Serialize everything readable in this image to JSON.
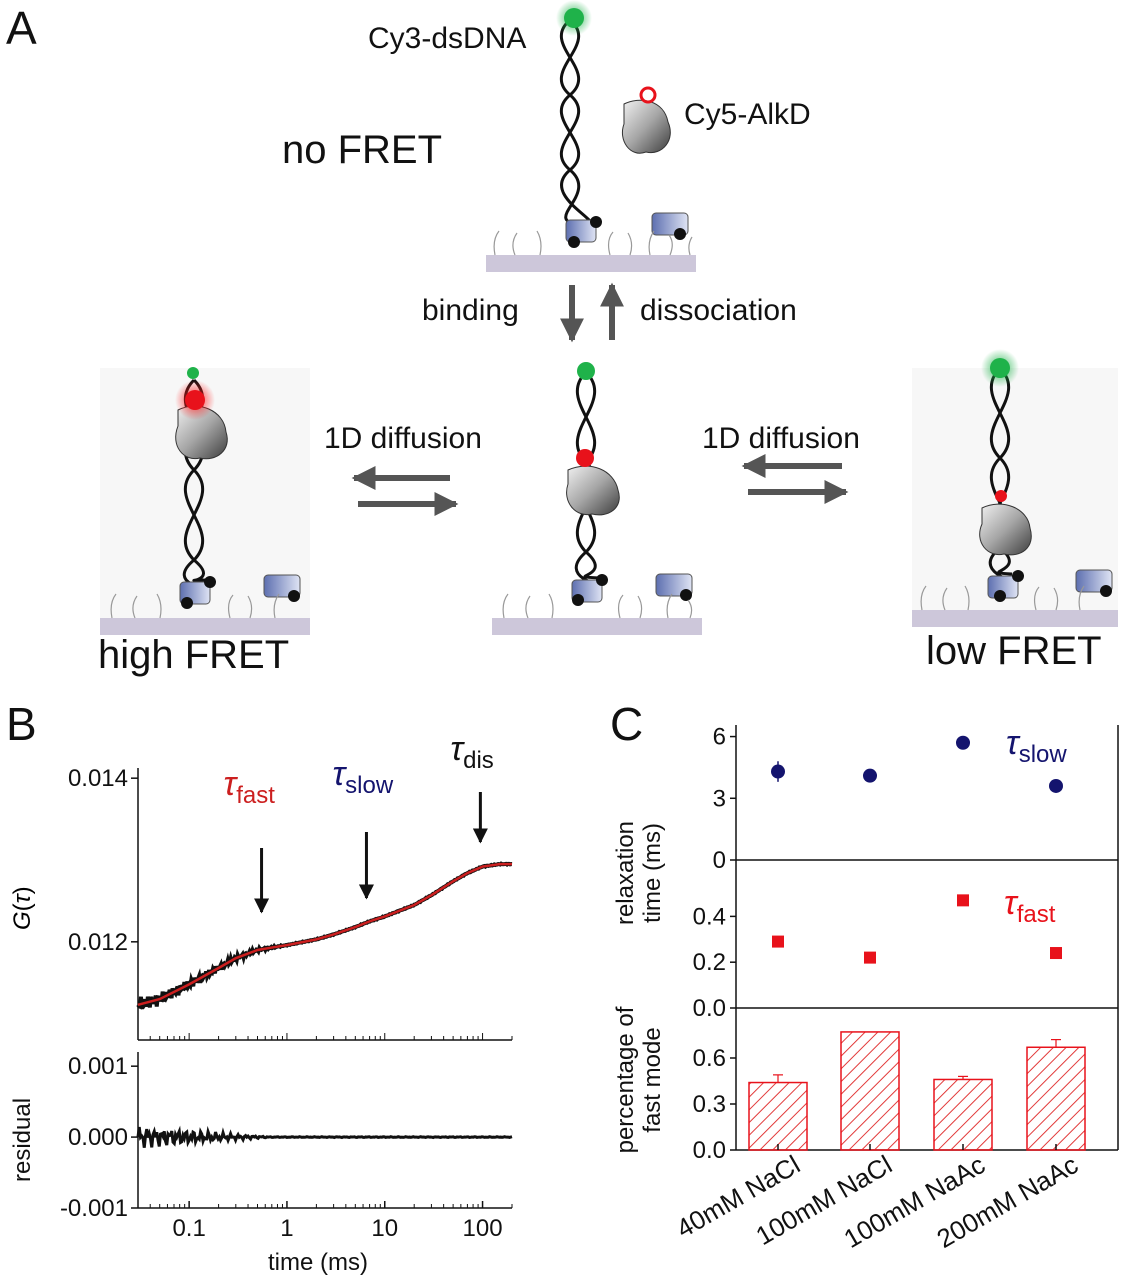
{
  "panels": {
    "a": "A",
    "b": "B",
    "c": "C"
  },
  "panel_a": {
    "cy3_label": "Cy3-dsDNA",
    "cy5_label": "Cy5-AlkD",
    "no_fret": "no FRET",
    "binding": "binding",
    "dissociation": "dissociation",
    "diffusion_left": "1D diffusion",
    "diffusion_right": "1D diffusion",
    "high_fret": "high FRET",
    "low_fret": "low FRET"
  },
  "colors": {
    "fit_red": "#cc1f1f",
    "data_black": "#111111",
    "slow_navy": "#14146e",
    "fast_red": "#e8121b",
    "cy3_green": "#1fb24a",
    "surface": "#cdc7da",
    "arrow_gray": "#555555"
  },
  "chart_data": [
    {
      "type": "line",
      "panel": "B-top",
      "xscale": "log",
      "xlim": [
        0.03,
        200
      ],
      "ylim": [
        0.0108,
        0.0141
      ],
      "xticks": [
        "0.1",
        "1",
        "10",
        "100"
      ],
      "yticks": [
        "0.012",
        "0.014"
      ],
      "ylabel_main": "G",
      "ylabel_sym": "τ",
      "series": [
        {
          "x": [
            0.03,
            0.05,
            0.1,
            0.2,
            0.3,
            0.5,
            0.7,
            1,
            2,
            3,
            5,
            7,
            10,
            20,
            30,
            50,
            70,
            100,
            150,
            200
          ],
          "y": [
            0.01123,
            0.0113,
            0.01148,
            0.01168,
            0.0118,
            0.0119,
            0.01193,
            0.01196,
            0.01203,
            0.01209,
            0.01218,
            0.01225,
            0.01231,
            0.01245,
            0.01257,
            0.01274,
            0.01284,
            0.01292,
            0.01295,
            0.01295
          ]
        }
      ],
      "annotations": [
        {
          "sym": "τ",
          "sub": "fast",
          "x": 0.55,
          "color": "#cc1f1f"
        },
        {
          "sym": "τ",
          "sub": "slow",
          "x": 6.5,
          "color": "#14146e"
        },
        {
          "sym": "τ",
          "sub": "dis",
          "x": 95,
          "color": "#111111"
        }
      ]
    },
    {
      "type": "line",
      "panel": "B-bottom",
      "xscale": "log",
      "xlim": [
        0.03,
        200
      ],
      "ylim": [
        -0.001,
        0.0012
      ],
      "xticks": [
        "0.1",
        "1",
        "10",
        "100"
      ],
      "yticks": [
        "0.001",
        "0.000",
        "-0.001"
      ],
      "xlabel": "time (ms)",
      "ylabel": "residual",
      "series": [
        {
          "x": [
            0.03,
            200
          ],
          "y": [
            0.0,
            0.0
          ]
        }
      ]
    },
    {
      "type": "scatter",
      "panel": "C-top",
      "categories": [
        "40mM NaCl",
        "100mM NaCl",
        "100mM NaAc",
        "200mM NaAc"
      ],
      "ylim": [
        0,
        7
      ],
      "yticks": [
        "0",
        "3",
        "6"
      ],
      "series": [
        {
          "name": "τslow",
          "values": [
            4.3,
            4.1,
            5.7,
            3.6
          ],
          "errors": [
            0.5,
            0.0,
            0.0,
            0.0
          ]
        }
      ],
      "series_label": {
        "sym": "τ",
        "sub": "slow"
      }
    },
    {
      "type": "scatter",
      "panel": "C-middle",
      "categories": [
        "40mM NaCl",
        "100mM NaCl",
        "100mM NaAc",
        "200mM NaAc"
      ],
      "ylim": [
        0,
        0.62
      ],
      "yticks": [
        "0.0",
        "0.2",
        "0.4"
      ],
      "ylabel": "relaxation time (ms)",
      "ylabel_lines": [
        "relaxation",
        "time (ms)"
      ],
      "series": [
        {
          "name": "τfast",
          "values": [
            0.29,
            0.22,
            0.47,
            0.24
          ]
        }
      ],
      "series_label": {
        "sym": "τ",
        "sub": "fast"
      }
    },
    {
      "type": "bar",
      "panel": "C-bottom",
      "categories": [
        "40mM NaCl",
        "100mM NaCl",
        "100mM NaAc",
        "200mM NaAc"
      ],
      "values": [
        0.44,
        0.77,
        0.46,
        0.67
      ],
      "errors": [
        0.05,
        0.0,
        0.02,
        0.05
      ],
      "ylim": [
        0,
        0.9
      ],
      "yticks": [
        "0.0",
        "0.3",
        "0.6"
      ],
      "ylabel_lines": [
        "percentage of",
        "fast mode"
      ]
    }
  ]
}
